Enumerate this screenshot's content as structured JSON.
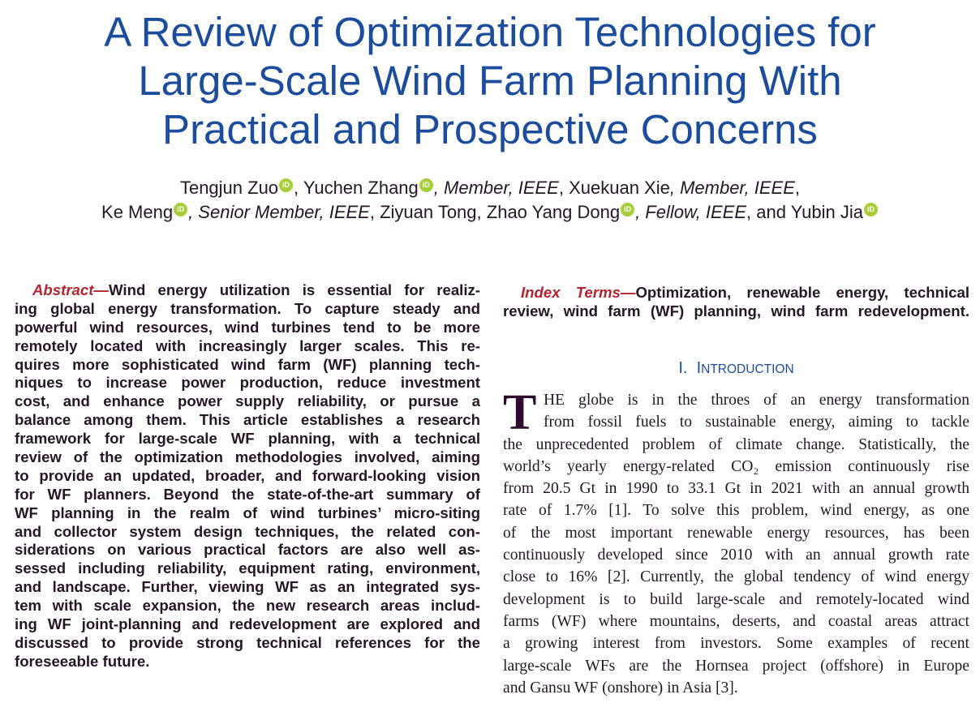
{
  "title": {
    "lines": [
      "A Review of Optimization Technologies for",
      "Large-Scale Wind Farm Planning With",
      "Practical and Prospective Concerns"
    ]
  },
  "authors": {
    "line1": [
      {
        "name": "Tengjun Zuo",
        "orcid": true,
        "suffix": ", "
      },
      {
        "name": "Yuchen Zhang",
        "orcid": true,
        "role": ", Member, IEEE",
        "suffix": ", "
      },
      {
        "name": "Xuekuan Xie",
        "orcid": false,
        "role": ", Member, IEEE",
        "suffix": ","
      }
    ],
    "line2": [
      {
        "name": "Ke Meng",
        "orcid": true,
        "role": ", Senior Member, IEEE",
        "suffix": ", "
      },
      {
        "name": "Ziyuan Tong",
        "orcid": false,
        "suffix": ", "
      },
      {
        "name": "Zhao Yang Dong",
        "orcid": true,
        "role": ", Fellow, IEEE",
        "suffix": ", and "
      },
      {
        "name": "Yubin Jia",
        "orcid": true,
        "suffix": ""
      }
    ],
    "orcid_label": "iD"
  },
  "abstract": {
    "label": "Abstract—",
    "lines": [
      "Wind energy utilization is essential for realiz-",
      "ing global energy transformation. To capture steady and",
      "powerful wind resources, wind turbines tend to be more",
      "remotely located with increasingly larger scales. This re-",
      "quires more sophisticated wind farm (WF) planning tech-",
      "niques to increase power production, reduce investment",
      "cost, and enhance power supply reliability, or pursue a",
      "balance among them. This article establishes a research",
      "framework for large-scale WF planning, with a technical",
      "review of the optimization methodologies involved, aiming",
      "to provide an updated, broader, and forward-looking vision",
      "for WF planners. Beyond the state-of-the-art summary of",
      "WF planning in the realm of wind turbines’ micro-siting",
      "and collector system design techniques, the related con-",
      "siderations on various practical factors are also well as-",
      "sessed including reliability, equipment rating, environment,",
      "and landscape. Further, viewing WF as an integrated sys-",
      "tem with scale expansion, the new research areas includ-",
      "ing WF joint-planning and redevelopment are explored and",
      "discussed to provide strong technical references for the",
      "foreseeable future."
    ]
  },
  "index_terms": {
    "label": "Index Terms—",
    "lines": [
      "Optimization, renewable energy, technical",
      "review, wind farm (WF) planning, wind farm redevelopment."
    ]
  },
  "section": {
    "number": "I.",
    "title_initial": "I",
    "title_rest": "NTRODUCTION"
  },
  "intro": {
    "dropcap": "T",
    "lines": [
      "HE globe is in the throes of an energy transformation",
      "from fossil fuels to sustainable energy, aiming to tackle",
      "the unprecedented problem of climate change. Statistically, the",
      "world’s yearly energy-related CO₂ emission continuously rise",
      "from 20.5 Gt in 1990 to 33.1 Gt in 2021 with an annual growth",
      "rate of 1.7% [1]. To solve this problem, wind energy, as one",
      "of the most important renewable energy resources, has been",
      "continuously developed since 2010 with an annual growth rate",
      "close to 16% [2]. Currently, the global tendency of wind energy",
      "development is to build large-scale and remotely-located wind",
      "farms (WF) where mountains, deserts, and coastal areas attract",
      "a growing interest from investors. Some examples of recent",
      "large-scale WFs are the Hornsea project (offshore) in Europe",
      "and Gansu WF (onshore) in Asia [3]."
    ]
  },
  "colors": {
    "title": "#1c4d9c",
    "label": "#b5232e",
    "text": "#261627",
    "orcid": "#a6ce39"
  }
}
